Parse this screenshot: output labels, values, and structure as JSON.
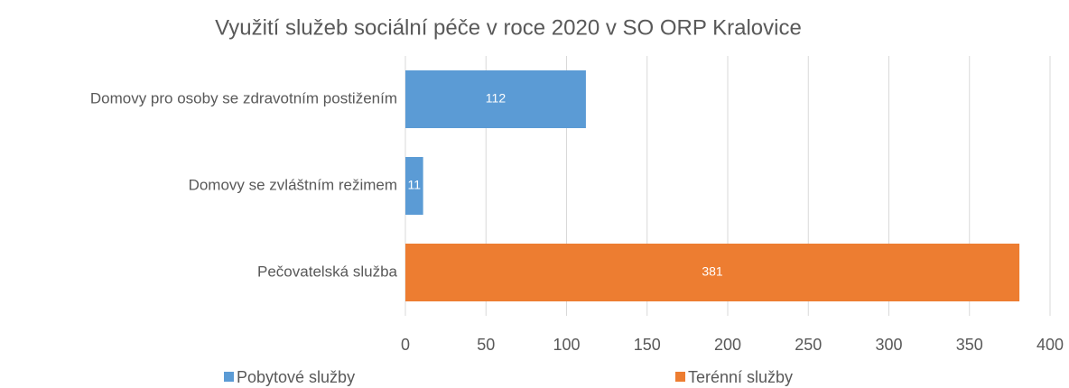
{
  "chart_data": {
    "type": "bar",
    "orientation": "horizontal",
    "stacked": true,
    "title": "Využití služeb sociální péče v roce 2020 v SO ORP Kralovice",
    "categories": [
      "Domovy pro osoby se zdravotním postižením",
      "Domovy se zvláštním režimem",
      "Pečovatelská služba"
    ],
    "series": [
      {
        "name": "Pobytové služby",
        "color": "#5b9bd5",
        "values": [
          112,
          11,
          null
        ]
      },
      {
        "name": "Terénní služby",
        "color": "#ed7d31",
        "values": [
          null,
          null,
          381
        ]
      }
    ],
    "xlim": [
      0,
      400
    ],
    "xticks": [
      0,
      50,
      100,
      150,
      200,
      250,
      300,
      350,
      400
    ],
    "grid": true,
    "legend": "bottom"
  }
}
